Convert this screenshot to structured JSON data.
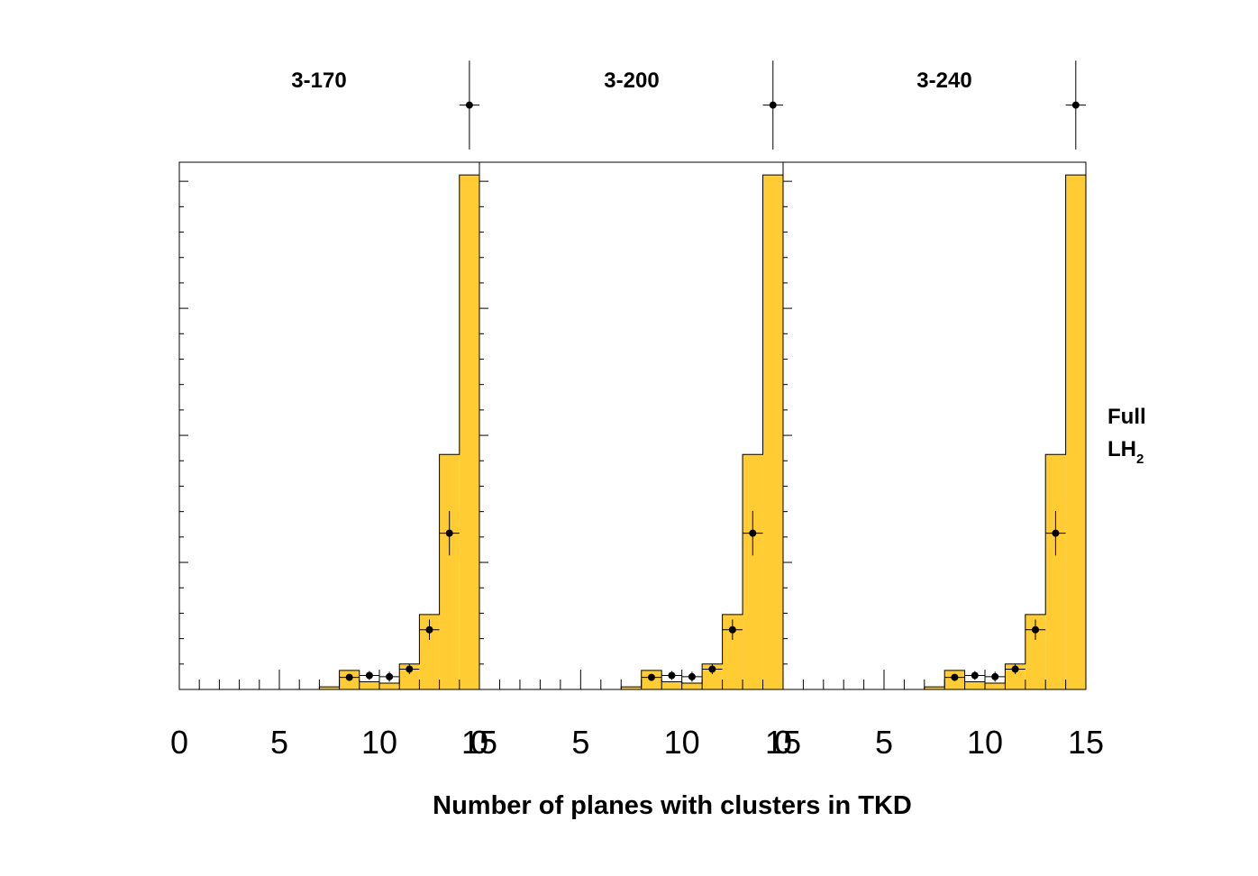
{
  "chart_data": {
    "type": "bar",
    "xlabel": "Number of planes with clusters in TKD",
    "ylabel": "",
    "xlim": [
      0,
      15
    ],
    "x_ticks": [
      "0",
      "5",
      "10",
      "15"
    ],
    "side_label": {
      "line1": "Full",
      "line2_main": "LH",
      "line2_sub": "2"
    },
    "panels": [
      {
        "title": "3-170",
        "histogram": {
          "name": "",
          "bin_edges": [
            7,
            8,
            9,
            10,
            11,
            12,
            13,
            14,
            15
          ],
          "values": [
            0.4,
            3.0,
            1.2,
            1.0,
            4.0,
            11.8,
            37.0,
            81.0
          ]
        },
        "points": {
          "x": [
            8.5,
            9.5,
            10.5,
            11.5,
            12.5,
            13.5,
            14.5
          ],
          "y": [
            1.9,
            2.2,
            2.0,
            3.2,
            9.4,
            24.6,
            92.0
          ],
          "yerr": [
            0.5,
            0.7,
            0.8,
            0.8,
            1.6,
            3.5,
            7.0
          ]
        }
      },
      {
        "title": "3-200",
        "histogram": {
          "name": "",
          "bin_edges": [
            7,
            8,
            9,
            10,
            11,
            12,
            13,
            14,
            15
          ],
          "values": [
            0.4,
            3.0,
            1.2,
            1.0,
            4.0,
            11.8,
            37.0,
            81.0
          ]
        },
        "points": {
          "x": [
            8.5,
            9.5,
            10.5,
            11.5,
            12.5,
            13.5,
            14.5
          ],
          "y": [
            1.9,
            2.2,
            2.0,
            3.2,
            9.4,
            24.6,
            92.0
          ],
          "yerr": [
            0.5,
            0.7,
            0.8,
            0.8,
            1.6,
            3.5,
            7.0
          ]
        }
      },
      {
        "title": "3-240",
        "histogram": {
          "name": "",
          "bin_edges": [
            7,
            8,
            9,
            10,
            11,
            12,
            13,
            14,
            15
          ],
          "values": [
            0.4,
            3.0,
            1.2,
            1.0,
            4.0,
            11.8,
            37.0,
            81.0
          ]
        },
        "points": {
          "x": [
            8.5,
            9.5,
            10.5,
            11.5,
            12.5,
            13.5,
            14.5
          ],
          "y": [
            1.9,
            2.2,
            2.0,
            3.2,
            9.4,
            24.6,
            92.0
          ],
          "yerr": [
            0.5,
            0.7,
            0.8,
            0.8,
            1.6,
            3.5,
            7.0
          ]
        }
      }
    ],
    "colors": {
      "histogram_fill": "#ffcc33",
      "line": "#000000",
      "marker": "#000000"
    }
  }
}
